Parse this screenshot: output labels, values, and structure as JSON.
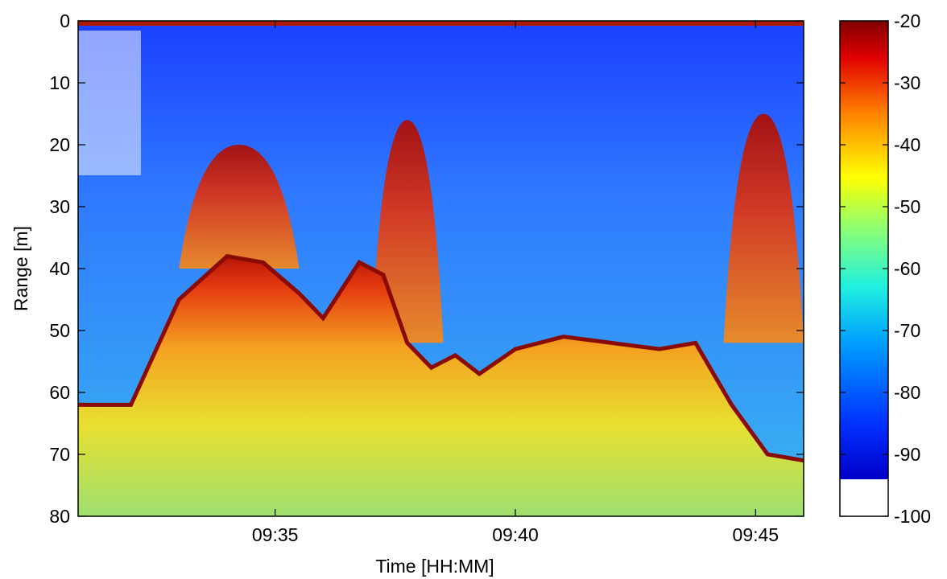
{
  "chart_data": {
    "type": "heatmap",
    "title": "",
    "xlabel": "Time [HH:MM]",
    "ylabel": "Range [m]",
    "x_range_minutes": [
      "09:30:54",
      "09:46:00"
    ],
    "ylim": [
      80,
      0
    ],
    "x_ticks": [
      "09:35",
      "09:40",
      "09:45"
    ],
    "y_ticks": [
      "0",
      "10",
      "20",
      "30",
      "40",
      "50",
      "60",
      "70",
      "80"
    ],
    "colorbar": {
      "colormap": "jet",
      "range": [
        -100,
        -20
      ],
      "ticks": [
        "-20",
        "-30",
        "-40",
        "-50",
        "-60",
        "-70",
        "-80",
        "-90",
        "-100"
      ],
      "threshold_white_below": -94
    },
    "seabed_profile": {
      "x": [
        "09:30:54",
        "09:32:00",
        "09:33:00",
        "09:34:00",
        "09:34:45",
        "09:35:30",
        "09:36:00",
        "09:36:45",
        "09:37:15",
        "09:37:45",
        "09:38:15",
        "09:38:45",
        "09:39:15",
        "09:40:00",
        "09:41:00",
        "09:42:00",
        "09:43:00",
        "09:43:45",
        "09:44:30",
        "09:45:15",
        "09:46:00"
      ],
      "depth_m": [
        62,
        62,
        45,
        38,
        39,
        44,
        48,
        39,
        41,
        52,
        56,
        54,
        57,
        53,
        51,
        52,
        53,
        52,
        62,
        70,
        71
      ]
    },
    "fish_schools": [
      {
        "name": "",
        "x_start": "09:33:00",
        "x_end": "09:35:30",
        "top_m": 20,
        "bottom_m": 40
      },
      {
        "name": "",
        "x_start": "09:37:00",
        "x_end": "09:38:30",
        "top_m": 16,
        "bottom_m": 52
      },
      {
        "name": "",
        "x_start": "09:44:20",
        "x_end": "09:46:00",
        "top_m": 15,
        "bottom_m": 52
      }
    ]
  },
  "colors": {
    "background_water": "#2a64ff",
    "seabed_strong": "#c01810",
    "sub_bottom": "#f0c020"
  }
}
